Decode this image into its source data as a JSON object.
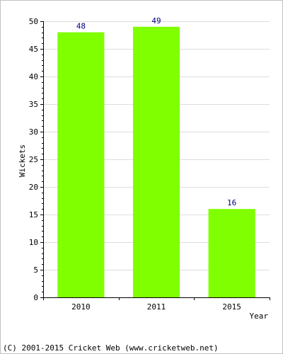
{
  "chart_data": {
    "type": "bar",
    "categories": [
      "2010",
      "2011",
      "2015"
    ],
    "values": [
      48,
      49,
      16
    ],
    "data_labels": [
      "48",
      "49",
      "16"
    ],
    "xlabel": "Year",
    "ylabel": "Wickets",
    "ylim": [
      0,
      50
    ],
    "yticks": [
      "0",
      "5",
      "10",
      "15",
      "20",
      "25",
      "30",
      "35",
      "40",
      "45",
      "50"
    ],
    "grid": true,
    "bar_color": "#80ff00",
    "value_label_color": "#000080"
  },
  "footer": {
    "copyright": "(C) 2001-2015 Cricket Web (www.cricketweb.net)"
  }
}
